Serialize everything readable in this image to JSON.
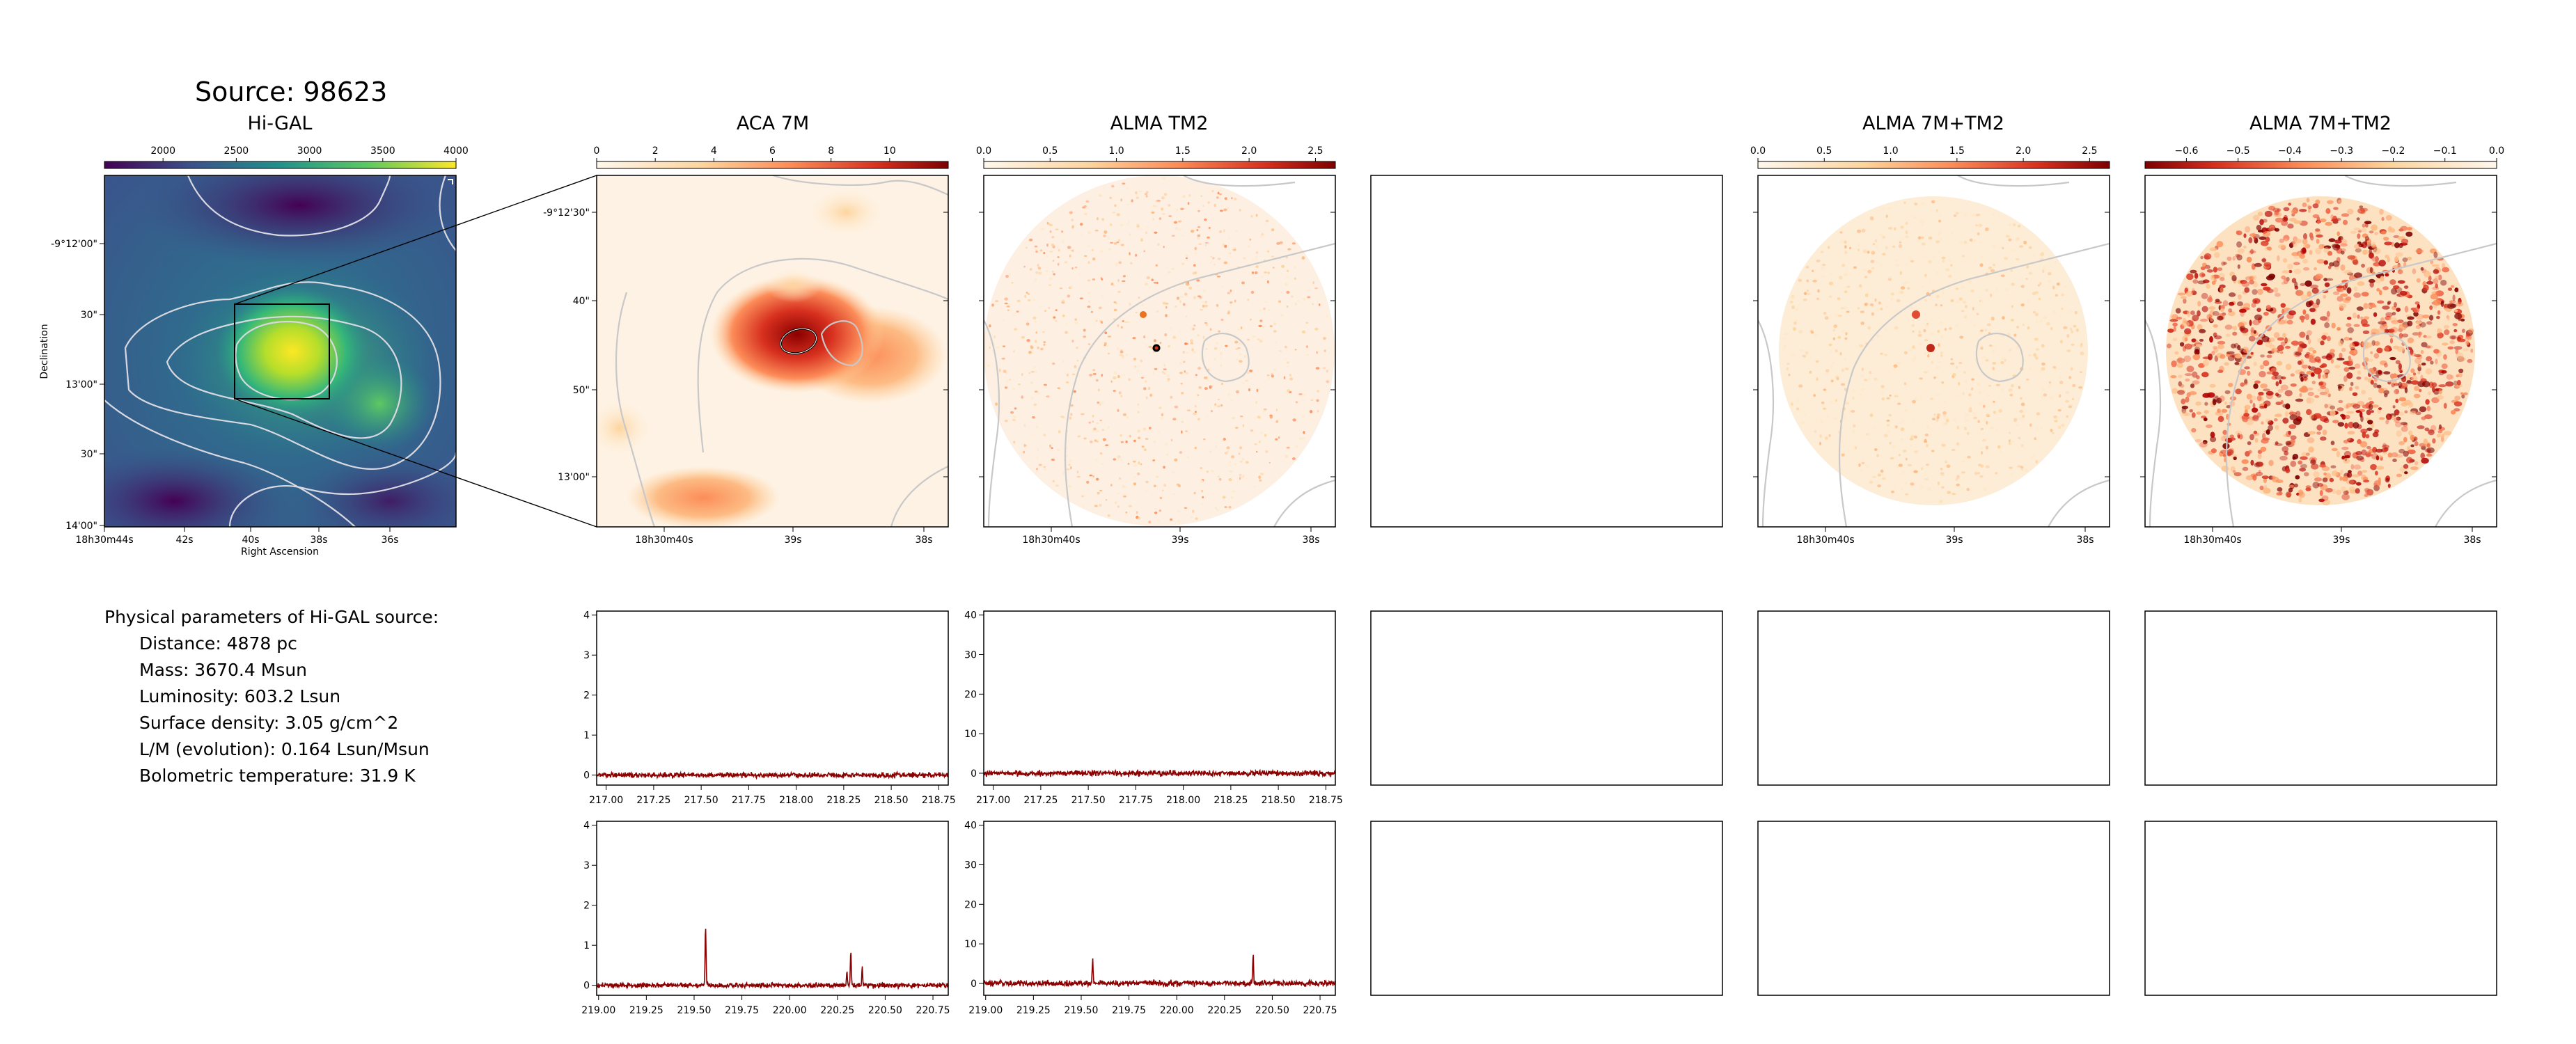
{
  "source_title": "Source: 98623",
  "physical_parameters": {
    "heading": "Physical parameters of Hi-GAL source:",
    "lines": [
      "Distance: 4878 pc",
      "Mass: 3670.4 Msun",
      "Luminosity: 603.2 Lsun",
      "Surface density: 3.05 g/cm^2",
      "L/M (evolution): 0.164 Lsun/Msun",
      "Bolometric temperature: 31.9 K"
    ]
  },
  "colors": {
    "spectrum_line": "#8b0000",
    "contour": "#c8c8c8",
    "zoom_box": "#000000"
  },
  "chart_data": [
    {
      "id": "higal",
      "type": "heatmap",
      "title": "Hi-GAL",
      "colormap": "viridis",
      "colorbar": {
        "ticks": [
          2000,
          2500,
          3000,
          3500,
          4000
        ],
        "range": [
          1600,
          4000
        ]
      },
      "xlabel": "Right Ascension",
      "ylabel": "Declination",
      "x_ticks": [
        "18h30m44s",
        "42s",
        "40s",
        "38s",
        "36s"
      ],
      "y_ticks": [
        "-9°12'00\"",
        "30\"",
        "13'00\"",
        "30\"",
        "14'00\""
      ],
      "contours": true
    },
    {
      "id": "aca7m",
      "type": "heatmap",
      "title": "ACA 7M",
      "colormap": "OrRd",
      "colorbar": {
        "ticks": [
          0,
          2,
          4,
          6,
          8,
          10
        ],
        "range": [
          0,
          12
        ]
      },
      "x_ticks": [
        "18h30m40s",
        "39s",
        "38s"
      ],
      "y_ticks": [
        "-9°12'30\"",
        "40\"",
        "50\"",
        "13'00\""
      ]
    },
    {
      "id": "tm2",
      "type": "heatmap",
      "title": "ALMA TM2",
      "colormap": "OrRd",
      "colorbar": {
        "ticks": [
          0.0,
          0.5,
          1.0,
          1.5,
          2.0,
          2.5
        ],
        "range": [
          0,
          2.65
        ]
      },
      "x_ticks": [
        "18h30m40s",
        "39s",
        "38s"
      ]
    },
    {
      "id": "empty",
      "type": "heatmap",
      "title": ""
    },
    {
      "id": "comb",
      "type": "heatmap",
      "title": "ALMA 7M+TM2",
      "colormap": "OrRd",
      "colorbar": {
        "ticks": [
          0.0,
          0.5,
          1.0,
          1.5,
          2.0,
          2.5
        ],
        "range": [
          0,
          2.65
        ]
      },
      "x_ticks": [
        "18h30m40s",
        "39s",
        "38s"
      ]
    },
    {
      "id": "neg",
      "type": "heatmap",
      "title": "ALMA 7M+TM2",
      "colormap": "OrRd_r",
      "colorbar": {
        "ticks": [
          -0.6,
          -0.5,
          -0.4,
          -0.3,
          -0.2,
          -0.1,
          0.0
        ],
        "tick_labels": [
          "−0.6",
          "−0.5",
          "−0.4",
          "−0.3",
          "−0.2",
          "−0.1",
          "0.0"
        ],
        "range": [
          -0.68,
          0
        ]
      },
      "x_ticks": [
        "18h30m40s",
        "39s",
        "38s"
      ]
    },
    {
      "id": "spec-aca-1",
      "type": "line",
      "x_range": [
        216.95,
        218.8
      ],
      "x_ticks": [
        "217.00",
        "217.25",
        "217.50",
        "217.75",
        "218.00",
        "218.25",
        "218.50",
        "218.75"
      ],
      "x_tick_values": [
        217.0,
        217.25,
        217.5,
        217.75,
        218.0,
        218.25,
        218.5,
        218.75
      ],
      "ylim": [
        -0.25,
        4.1
      ],
      "y_ticks": [
        0,
        1,
        2,
        3,
        4
      ],
      "noise": 0.06,
      "peaks": []
    },
    {
      "id": "spec-tm2-1",
      "type": "line",
      "x_range": [
        216.95,
        218.8
      ],
      "x_ticks": [
        "217.00",
        "217.25",
        "217.50",
        "217.75",
        "218.00",
        "218.25",
        "218.50",
        "218.75"
      ],
      "x_tick_values": [
        217.0,
        217.25,
        217.5,
        217.75,
        218.0,
        218.25,
        218.5,
        218.75
      ],
      "ylim": [
        -3,
        41
      ],
      "y_ticks": [
        0,
        10,
        20,
        30,
        40
      ],
      "noise": 0.7,
      "peaks": []
    },
    {
      "id": "spec-aca-2",
      "type": "line",
      "x_range": [
        218.99,
        220.83
      ],
      "x_ticks": [
        "219.00",
        "219.25",
        "219.50",
        "219.75",
        "220.00",
        "220.25",
        "220.50",
        "220.75"
      ],
      "x_tick_values": [
        219.0,
        219.25,
        219.5,
        219.75,
        220.0,
        220.25,
        220.5,
        220.75
      ],
      "ylim": [
        -0.25,
        4.1
      ],
      "y_ticks": [
        0,
        1,
        2,
        3,
        4
      ],
      "noise": 0.06,
      "peaks": [
        [
          219.56,
          1.45
        ],
        [
          220.3,
          0.35
        ],
        [
          220.32,
          0.85
        ],
        [
          220.38,
          0.45
        ]
      ]
    },
    {
      "id": "spec-tm2-2",
      "type": "line",
      "x_range": [
        218.99,
        220.83
      ],
      "x_ticks": [
        "219.00",
        "219.25",
        "219.50",
        "219.75",
        "220.00",
        "220.25",
        "220.50",
        "220.75"
      ],
      "x_tick_values": [
        219.0,
        219.25,
        219.5,
        219.75,
        220.0,
        220.25,
        220.5,
        220.75
      ],
      "ylim": [
        -3,
        41
      ],
      "y_ticks": [
        0,
        10,
        20,
        30,
        40
      ],
      "noise": 0.7,
      "peaks": [
        [
          219.56,
          6
        ],
        [
          220.4,
          7
        ]
      ]
    }
  ]
}
